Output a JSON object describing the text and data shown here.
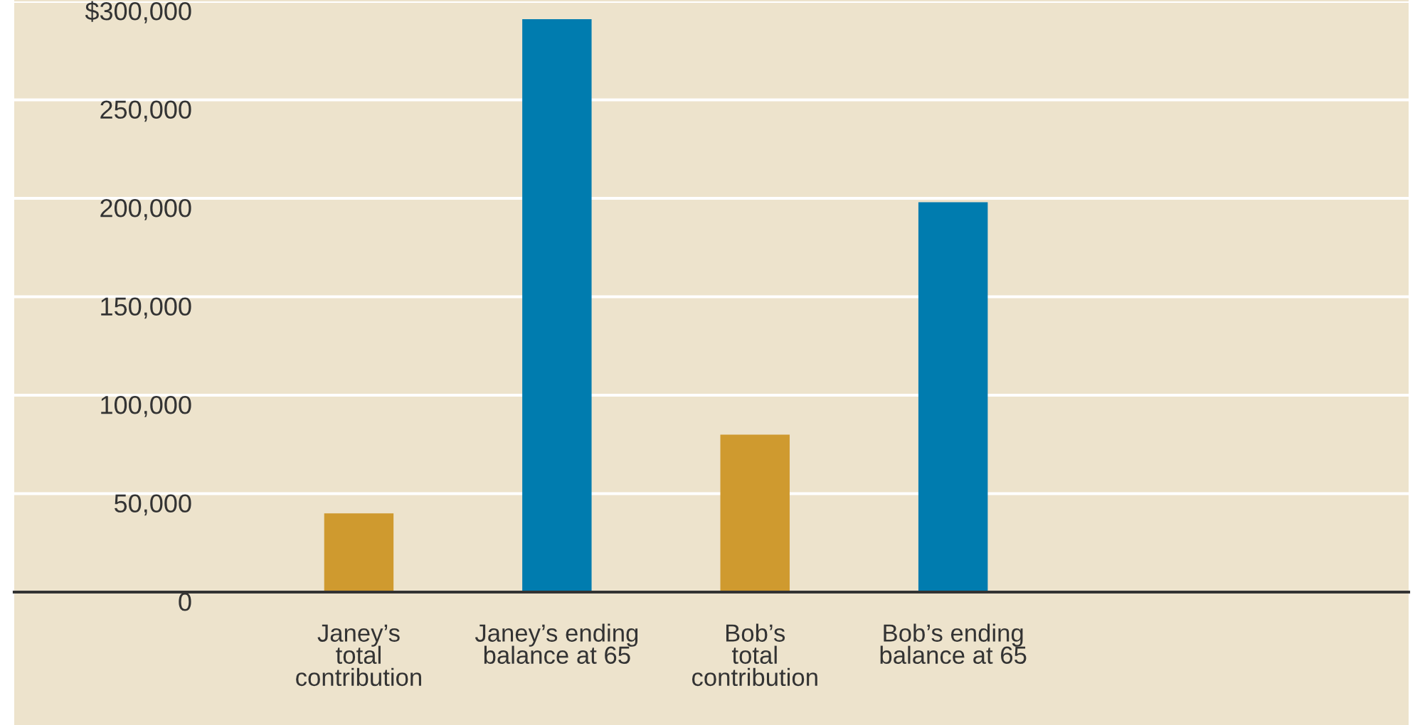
{
  "chart_data": {
    "type": "bar",
    "categories": [
      "Janey’s\ntotal\ncontribution",
      "Janey’s ending\nbalance at 65",
      "Bob’s\ntotal\ncontribution",
      "Bob’s ending\nbalance at 65"
    ],
    "values": [
      40000,
      291000,
      80000,
      198000
    ],
    "colors": [
      "#cf9a2f",
      "#007caf",
      "#cf9a2f",
      "#007caf"
    ],
    "ylim": [
      0,
      300000
    ],
    "yticks": [
      {
        "value": 0,
        "label": "0"
      },
      {
        "value": 50000,
        "label": "50,000"
      },
      {
        "value": 100000,
        "label": "100,000"
      },
      {
        "value": 150000,
        "label": "150,000"
      },
      {
        "value": 200000,
        "label": "200,000"
      },
      {
        "value": 250000,
        "label": "250,000"
      },
      {
        "value": 300000,
        "label": "$300,000"
      }
    ],
    "grid": "y",
    "legend": false
  }
}
